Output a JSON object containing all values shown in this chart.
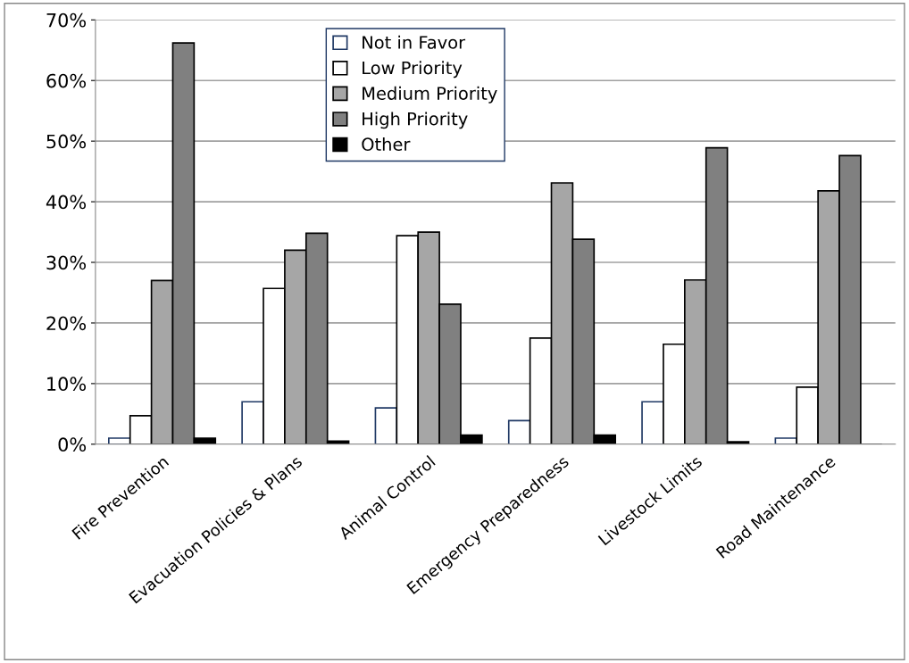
{
  "chart_data": {
    "type": "bar",
    "categories": [
      "Fire Prevention",
      "Evacuation Policies & Plans",
      "Animal Control",
      "Emergency Preparedness",
      "Livestock Limits",
      "Road Maintenance"
    ],
    "series": [
      {
        "name": "Not in Favor",
        "color": "#ffffff",
        "values": [
          1.0,
          7.0,
          6.0,
          3.9,
          7.0,
          1.0
        ]
      },
      {
        "name": "Low Priority",
        "color": "#ffffff",
        "values": [
          4.7,
          25.7,
          34.4,
          17.5,
          16.5,
          9.4
        ]
      },
      {
        "name": "Medium Priority",
        "color": "#a6a6a6",
        "values": [
          27.0,
          32.0,
          35.0,
          43.1,
          27.1,
          41.8
        ]
      },
      {
        "name": "High Priority",
        "color": "#808080",
        "values": [
          66.2,
          34.8,
          23.1,
          33.8,
          48.9,
          47.6
        ]
      },
      {
        "name": "Other",
        "color": "#000000",
        "values": [
          1.0,
          0.5,
          1.5,
          1.5,
          0.4,
          0.0
        ]
      }
    ],
    "ylim": [
      0,
      70
    ],
    "yticks": [
      {
        "value": 0,
        "label": "0%"
      },
      {
        "value": 10,
        "label": "10%"
      },
      {
        "value": 20,
        "label": "20%"
      },
      {
        "value": 30,
        "label": "30%"
      },
      {
        "value": 40,
        "label": "40%"
      },
      {
        "value": 50,
        "label": "50%"
      },
      {
        "value": 60,
        "label": "60%"
      },
      {
        "value": 70,
        "label": "70%"
      }
    ],
    "grid": "y",
    "legend": "top"
  }
}
